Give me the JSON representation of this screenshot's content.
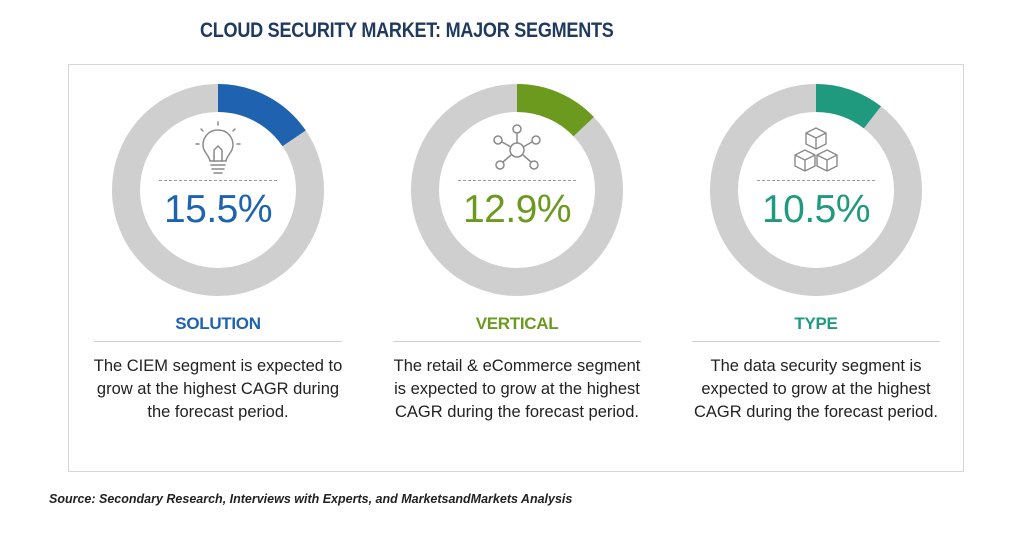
{
  "title": "CLOUD SECURITY MARKET: MAJOR SEGMENTS",
  "source": "Source: Secondary Research, Interviews with Experts, and MarketsandMarkets Analysis",
  "chart_data": {
    "type": "pie",
    "segments": [
      {
        "name": "SOLUTION",
        "value": 15.5,
        "label": "15.5%",
        "description": "The CIEM segment is expected to grow at the highest CAGR during the forecast period.",
        "color": "#1f63b0",
        "icon": "lightbulb-icon"
      },
      {
        "name": "VERTICAL",
        "value": 12.9,
        "label": "12.9%",
        "description": "The retail & eCommerce segment is expected to grow at the highest CAGR during the forecast period.",
        "color": "#6b9a1f",
        "icon": "network-hub-icon"
      },
      {
        "name": "TYPE",
        "value": 10.5,
        "label": "10.5%",
        "description": "The data security segment is expected to grow at the highest CAGR during the forecast period.",
        "color": "#1f9a7e",
        "icon": "cubes-icon"
      }
    ],
    "track_color": "#cfcfcf",
    "text_color": {
      "SOLUTION": "#1f63b0",
      "VERTICAL": "#6b9a1f",
      "TYPE": "#1f9a7e"
    }
  }
}
